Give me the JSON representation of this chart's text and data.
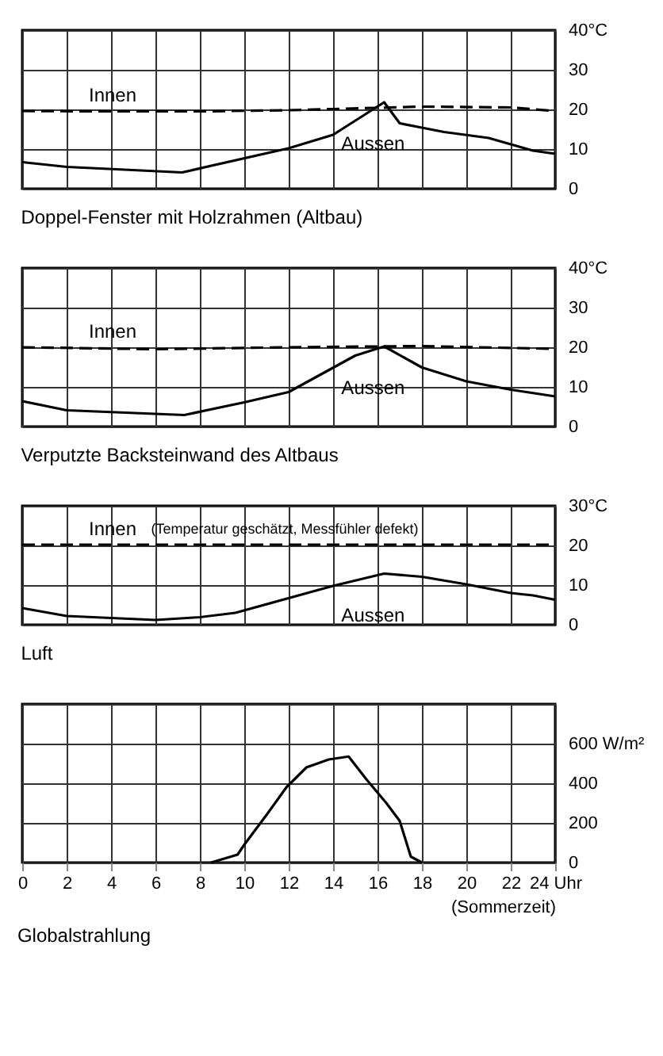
{
  "chart_data": [
    {
      "type": "line",
      "title": "Doppel-Fenster mit Holzrahmen (Altbau)",
      "xlim": [
        0,
        24
      ],
      "xticks": [
        0,
        2,
        4,
        6,
        8,
        10,
        12,
        14,
        16,
        18,
        20,
        22,
        24
      ],
      "ylim": [
        0,
        40
      ],
      "yticks": [
        0,
        10,
        20,
        30,
        {
          "value": 40,
          "label": "40°C"
        }
      ],
      "grid": true,
      "tick_labels": "y",
      "series": [
        {
          "name": "Innen",
          "color": "#000000",
          "line_style": "dashed",
          "x": [
            0,
            4,
            8,
            12,
            14,
            18,
            22,
            24
          ],
          "values": [
            19.6,
            19.5,
            19.5,
            19.8,
            20.1,
            20.7,
            20.5,
            19.6
          ]
        },
        {
          "name": "Aussen",
          "color": "#000000",
          "line_style": "solid",
          "x": [
            0,
            2,
            7.2,
            12,
            14,
            16.3,
            17,
            19,
            21,
            23,
            24
          ],
          "values": [
            6.7,
            5.5,
            4.1,
            10.2,
            13.6,
            21.8,
            16.5,
            14.3,
            12.8,
            9.6,
            8.8
          ]
        }
      ]
    },
    {
      "type": "line",
      "title": "Verputzte Backsteinwand des Altbaus",
      "xlim": [
        0,
        24
      ],
      "xticks": [
        0,
        2,
        4,
        6,
        8,
        10,
        12,
        14,
        16,
        18,
        20,
        22,
        24
      ],
      "ylim": [
        0,
        40
      ],
      "yticks": [
        0,
        10,
        20,
        30,
        {
          "value": 40,
          "label": "40°C"
        }
      ],
      "grid": true,
      "tick_labels": "y",
      "series": [
        {
          "name": "Innen",
          "color": "#000000",
          "line_style": "dashed",
          "x": [
            0,
            6,
            12,
            18,
            24
          ],
          "values": [
            20,
            19.5,
            20,
            20.3,
            19.6
          ]
        },
        {
          "name": "Aussen",
          "color": "#000000",
          "line_style": "solid",
          "x": [
            0,
            2,
            7.3,
            10,
            12,
            15,
            16.3,
            18,
            20,
            22,
            24
          ],
          "values": [
            6.4,
            4.1,
            2.9,
            6.1,
            8.7,
            17.9,
            20.2,
            14.9,
            11.4,
            9.3,
            7.6
          ]
        }
      ]
    },
    {
      "type": "line",
      "title": "Luft",
      "annotations": [
        "(Temperatur geschätzt, Messfühler defekt)"
      ],
      "xlim": [
        0,
        24
      ],
      "xticks": [
        0,
        2,
        4,
        6,
        8,
        10,
        12,
        14,
        16,
        18,
        20,
        22,
        24
      ],
      "ylim": [
        0,
        30
      ],
      "yticks": [
        0,
        10,
        20,
        {
          "value": 30,
          "label": "30°C"
        }
      ],
      "grid": true,
      "tick_labels": "y",
      "series": [
        {
          "name": "Innen",
          "color": "#000000",
          "line_style": "dashed",
          "x": [
            0,
            24
          ],
          "values": [
            20.2,
            20.2
          ]
        },
        {
          "name": "Aussen",
          "color": "#000000",
          "line_style": "solid",
          "x": [
            0,
            2,
            6,
            8,
            9.6,
            14,
            16.3,
            18,
            20,
            22,
            23,
            24
          ],
          "values": [
            4.2,
            2.2,
            1.2,
            1.9,
            3.0,
            9.8,
            12.9,
            12.1,
            10.2,
            8.0,
            7.4,
            6.3
          ]
        }
      ]
    },
    {
      "type": "line",
      "title": "Globalstrahlung",
      "xlabel": "(Sommerzeit)",
      "xlim": [
        0,
        24
      ],
      "xticks": [
        0,
        2,
        4,
        6,
        8,
        10,
        12,
        14,
        16,
        18,
        20,
        22,
        {
          "value": 24,
          "label": "24 Uhr"
        }
      ],
      "ylim": [
        0,
        800
      ],
      "yticks": [
        0,
        200,
        400,
        {
          "value": 600,
          "label": "600 W/m²"
        },
        {
          "value": 800,
          "label": null
        }
      ],
      "grid": true,
      "series": [
        {
          "color": "#000000",
          "line_style": "solid",
          "x": [
            8.5,
            9.7,
            10,
            11,
            11.9,
            12.8,
            13.8,
            14.7,
            15.5,
            16.4,
            17,
            17.5,
            18
          ],
          "values": [
            0,
            40,
            90,
            240,
            380,
            480,
            520,
            535,
            420,
            300,
            210,
            30,
            0
          ]
        }
      ]
    }
  ]
}
